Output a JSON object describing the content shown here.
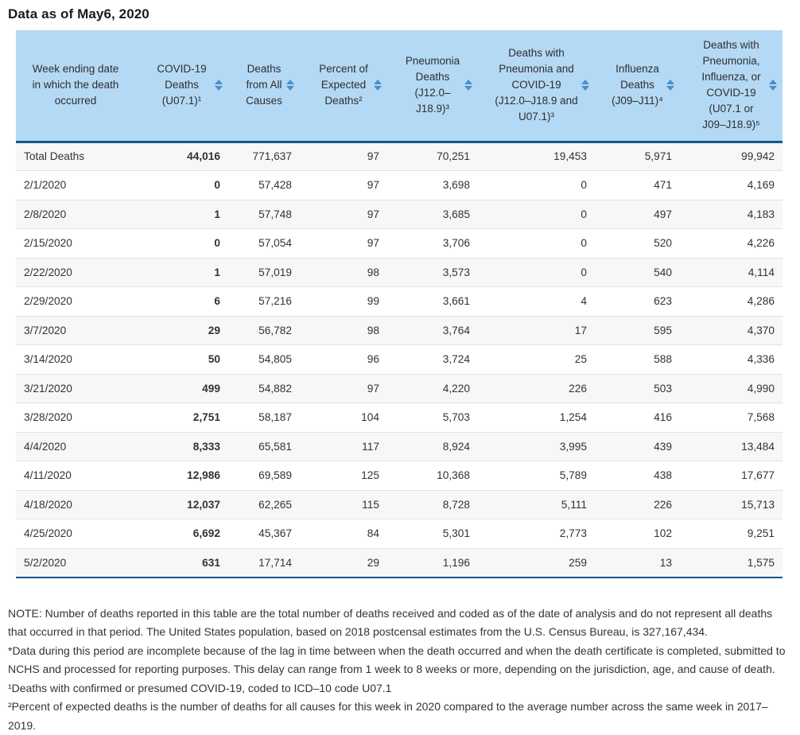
{
  "page": {
    "title": "Data as of May6, 2020"
  },
  "colors": {
    "header_bg": "#b4d9f5",
    "header_rule_blue": "#15568d",
    "sort_arrow_blue": "#4a8fc6",
    "row_stripe": "#f7f7f7",
    "text": "#333333"
  },
  "table": {
    "columns": [
      {
        "key": "week_ending",
        "label": "Week ending date in which the death occurred",
        "sortable": false
      },
      {
        "key": "covid19_deaths",
        "label": "COVID-19 Deaths (U07.1)¹",
        "sortable": true
      },
      {
        "key": "deaths_all_causes",
        "label": "Deaths from All Causes",
        "sortable": true
      },
      {
        "key": "percent_expected_deaths",
        "label": "Percent of Expected Deaths²",
        "sortable": true
      },
      {
        "key": "pneumonia_deaths",
        "label": "Pneumonia Deaths (J12.0–J18.9)³",
        "sortable": true
      },
      {
        "key": "pneumonia_and_covid19_deaths",
        "label": "Deaths with Pneumonia and COVID-19 (J12.0–J18.9 and U07.1)³",
        "sortable": true
      },
      {
        "key": "influenza_deaths",
        "label": "Influenza Deaths (J09–J11)⁴",
        "sortable": true
      },
      {
        "key": "pic_deaths",
        "label": "Deaths with Pneumonia, Influenza, or COVID-19 (U07.1 or J09–J18.9)⁵",
        "sortable": true
      }
    ],
    "rows": [
      [
        "Total Deaths",
        "44,016",
        "771,637",
        "97",
        "70,251",
        "19,453",
        "5,971",
        "99,942"
      ],
      [
        "2/1/2020",
        "0",
        "57,428",
        "97",
        "3,698",
        "0",
        "471",
        "4,169"
      ],
      [
        "2/8/2020",
        "1",
        "57,748",
        "97",
        "3,685",
        "0",
        "497",
        "4,183"
      ],
      [
        "2/15/2020",
        "0",
        "57,054",
        "97",
        "3,706",
        "0",
        "520",
        "4,226"
      ],
      [
        "2/22/2020",
        "1",
        "57,019",
        "98",
        "3,573",
        "0",
        "540",
        "4,114"
      ],
      [
        "2/29/2020",
        "6",
        "57,216",
        "99",
        "3,661",
        "4",
        "623",
        "4,286"
      ],
      [
        "3/7/2020",
        "29",
        "56,782",
        "98",
        "3,764",
        "17",
        "595",
        "4,370"
      ],
      [
        "3/14/2020",
        "50",
        "54,805",
        "96",
        "3,724",
        "25",
        "588",
        "4,336"
      ],
      [
        "3/21/2020",
        "499",
        "54,882",
        "97",
        "4,220",
        "226",
        "503",
        "4,990"
      ],
      [
        "3/28/2020",
        "2,751",
        "58,187",
        "104",
        "5,703",
        "1,254",
        "416",
        "7,568"
      ],
      [
        "4/4/2020",
        "8,333",
        "65,581",
        "117",
        "8,924",
        "3,995",
        "439",
        "13,484"
      ],
      [
        "4/11/2020",
        "12,986",
        "69,589",
        "125",
        "10,368",
        "5,789",
        "438",
        "17,677"
      ],
      [
        "4/18/2020",
        "12,037",
        "62,265",
        "115",
        "8,728",
        "5,111",
        "226",
        "15,713"
      ],
      [
        "4/25/2020",
        "6,692",
        "45,367",
        "84",
        "5,301",
        "2,773",
        "102",
        "9,251"
      ],
      [
        "5/2/2020",
        "631",
        "17,714",
        "29",
        "1,196",
        "259",
        "13",
        "1,575"
      ]
    ]
  },
  "footnotes": [
    "NOTE: Number of deaths reported in this table are the total number of deaths received and coded as of the date of analysis and do not represent all deaths that occurred in that period. The United States population, based on 2018 postcensal estimates from the U.S. Census Bureau, is 327,167,434.",
    "*Data during this period are incomplete because of the lag in time between when the death occurred and when the death certificate is completed, submitted to NCHS and processed for reporting purposes. This delay can range from 1 week to 8 weeks or more, depending on the jurisdiction, age, and cause of death.",
    "¹Deaths with confirmed or presumed COVID-19, coded to ICD–10 code U07.1",
    "²Percent of expected deaths is the number of deaths for all causes for this week in 2020 compared to the average number across the same week in 2017–2019."
  ]
}
